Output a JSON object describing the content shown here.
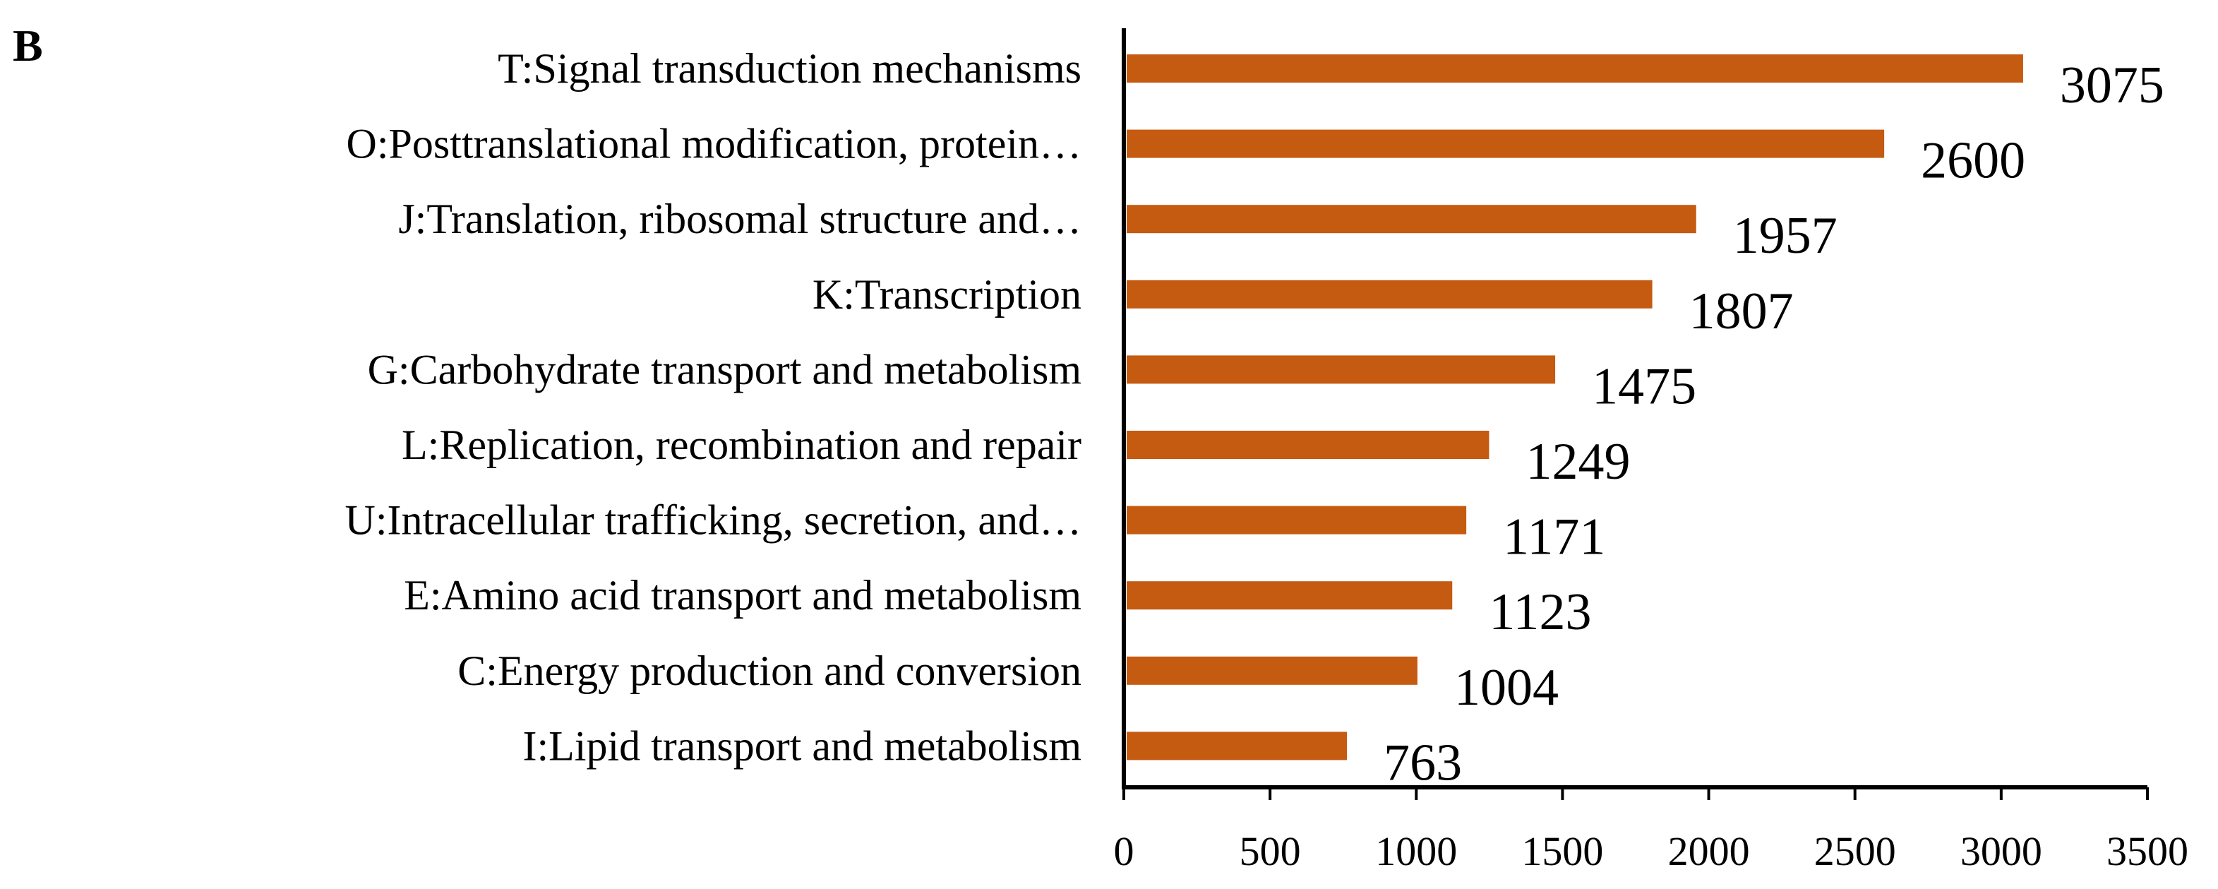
{
  "panel_label": "B",
  "chart_data": {
    "type": "bar",
    "orientation": "horizontal",
    "title": "",
    "xlabel": "",
    "ylabel": "",
    "xlim": [
      0,
      3500
    ],
    "x_ticks": [
      0,
      500,
      1000,
      1500,
      2000,
      2500,
      3000,
      3500
    ],
    "categories": [
      "T:Signal transduction mechanisms",
      "O:Posttranslational modification, protein…",
      "J:Translation, ribosomal structure and…",
      "K:Transcription",
      "G:Carbohydrate transport and metabolism",
      "L:Replication, recombination and repair",
      "U:Intracellular trafficking, secretion, and…",
      "E:Amino acid transport and metabolism",
      "C:Energy production and conversion",
      "I:Lipid transport and metabolism"
    ],
    "values": [
      3075,
      2600,
      1957,
      1807,
      1475,
      1249,
      1171,
      1123,
      1004,
      763
    ],
    "data_labels": [
      "3075",
      "2600",
      "1957",
      "1807",
      "1475",
      "1249",
      "1171",
      "1123",
      "1004",
      "763"
    ],
    "bar_color": "#C55A11",
    "grid": false,
    "legend": "none"
  }
}
